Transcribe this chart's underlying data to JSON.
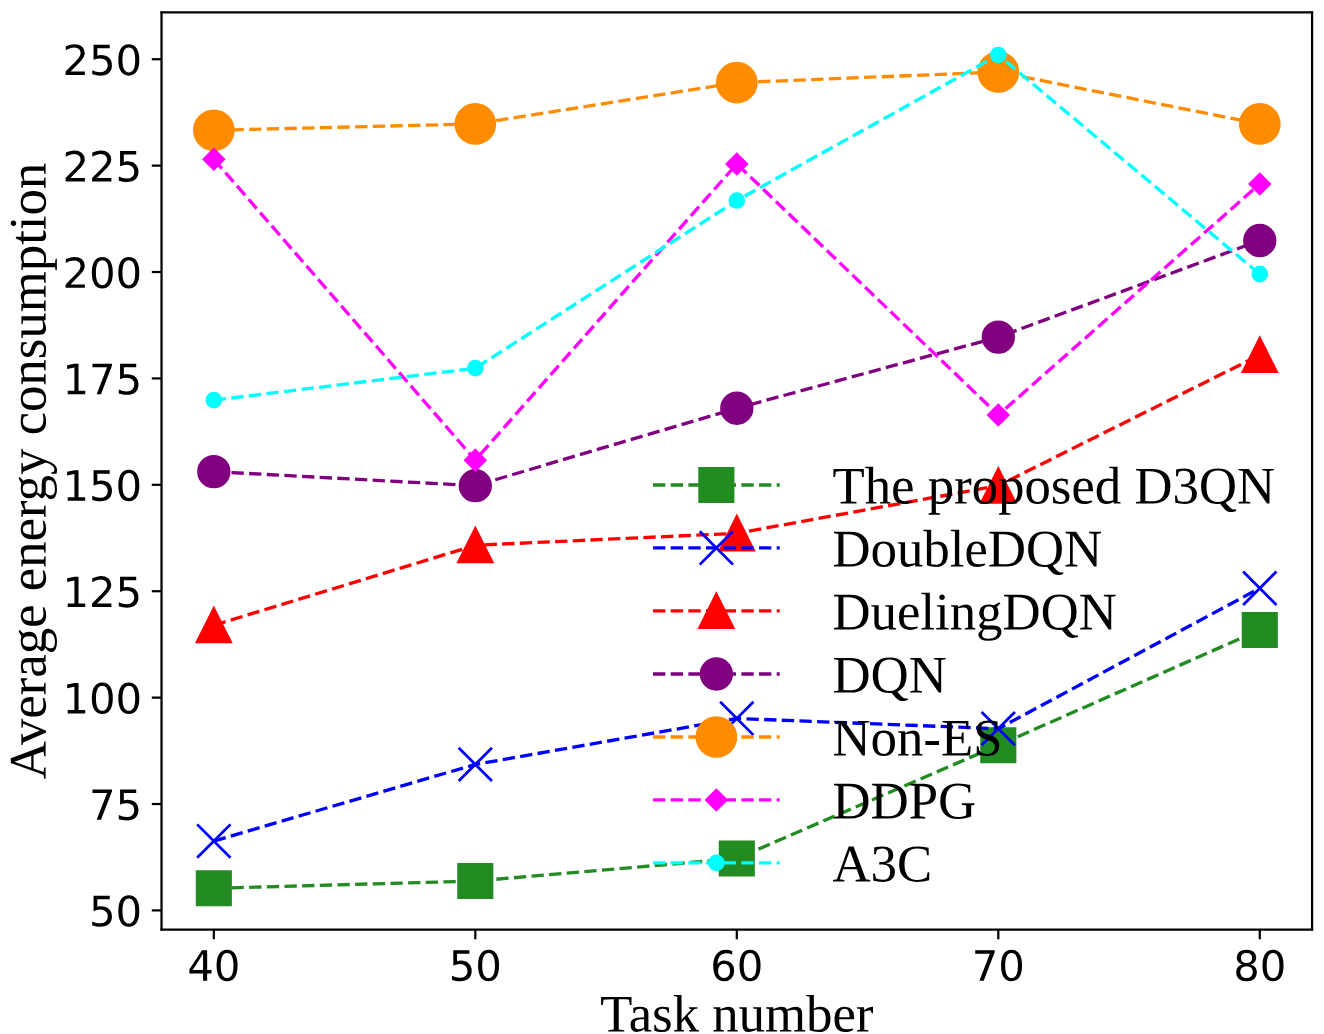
{
  "chart_data": {
    "type": "line",
    "xlabel": "Task number",
    "ylabel": "Average energy consumption",
    "x": [
      40,
      50,
      60,
      70,
      80
    ],
    "xlim": [
      38,
      82
    ],
    "xticks": [
      40,
      50,
      60,
      70,
      80
    ],
    "ylim": [
      45.5,
      261
    ],
    "yticks": [
      50,
      75,
      100,
      125,
      150,
      175,
      200,
      225,
      250
    ],
    "legend": "bottom right",
    "line_style": "dashed",
    "grid": false,
    "series": [
      {
        "name": "The proposed D3QN",
        "color": "#228b22",
        "marker": "square",
        "values": [
          55.2,
          56.9,
          62.2,
          88.8,
          115.9
        ]
      },
      {
        "name": "DoubleDQN",
        "color": "#0000ff",
        "marker": "cross",
        "values": [
          66.3,
          84.3,
          95.1,
          92.7,
          125.7
        ]
      },
      {
        "name": "DuelingDQN",
        "color": "#ff0000",
        "marker": "triangle",
        "values": [
          117,
          135.8,
          138.6,
          149.8,
          180.5
        ]
      },
      {
        "name": "DQN",
        "color": "#800080",
        "marker": "circle",
        "values": [
          153.1,
          149.8,
          168,
          184.7,
          207.4
        ]
      },
      {
        "name": "Non-ES",
        "color": "#ff8c00",
        "marker": "circle",
        "values": [
          233.3,
          234.8,
          244.5,
          247,
          234.8
        ]
      },
      {
        "name": "DDPG",
        "color": "#ff00ff",
        "marker": "diamond",
        "values": [
          226.5,
          155.8,
          225.4,
          166.4,
          220.7
        ]
      },
      {
        "name": "A3C",
        "color": "#00ffff",
        "marker": "circle",
        "values": [
          169.9,
          177.4,
          216.8,
          251,
          199.5
        ]
      }
    ]
  }
}
